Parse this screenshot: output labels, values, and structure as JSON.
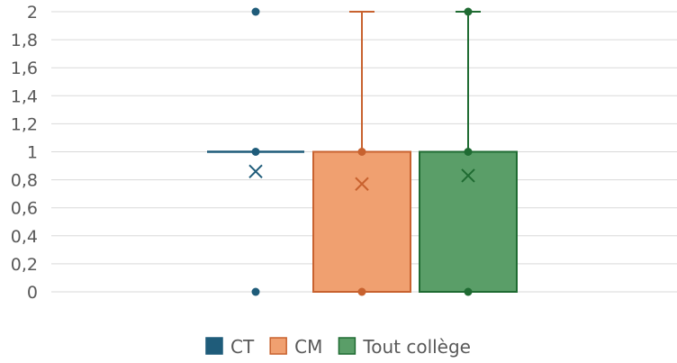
{
  "chart_data": {
    "type": "box",
    "title": "",
    "xlabel": "",
    "ylabel": "",
    "ylim": [
      0,
      2
    ],
    "y_ticks": [
      "0",
      "0,2",
      "0,4",
      "0,6",
      "0,8",
      "1",
      "1,2",
      "1,4",
      "1,6",
      "1,8",
      "2"
    ],
    "y_tick_values": [
      0,
      0.2,
      0.4,
      0.6,
      0.8,
      1,
      1.2,
      1.4,
      1.6,
      1.8,
      2
    ],
    "grid": true,
    "legend_position": "bottom",
    "series": [
      {
        "name": "CT",
        "color": "#1f5c7a",
        "fill": "#1f5c7a",
        "min": 1,
        "q1": 1,
        "median": 1,
        "q3": 1,
        "max": 1,
        "mean": 0.86,
        "points": [
          2,
          1,
          0
        ]
      },
      {
        "name": "CM",
        "color": "#c8622f",
        "fill": "#f0a070",
        "min": 0,
        "q1": 0,
        "median": 1,
        "q3": 1,
        "max": 2,
        "mean": 0.77,
        "points": [
          1,
          0
        ]
      },
      {
        "name": "Tout collège",
        "color": "#1f6b32",
        "fill": "#5a9e68",
        "min": 0,
        "q1": 0,
        "median": 1,
        "q3": 1,
        "max": 2,
        "mean": 0.83,
        "points": [
          2,
          1,
          0
        ]
      }
    ]
  }
}
